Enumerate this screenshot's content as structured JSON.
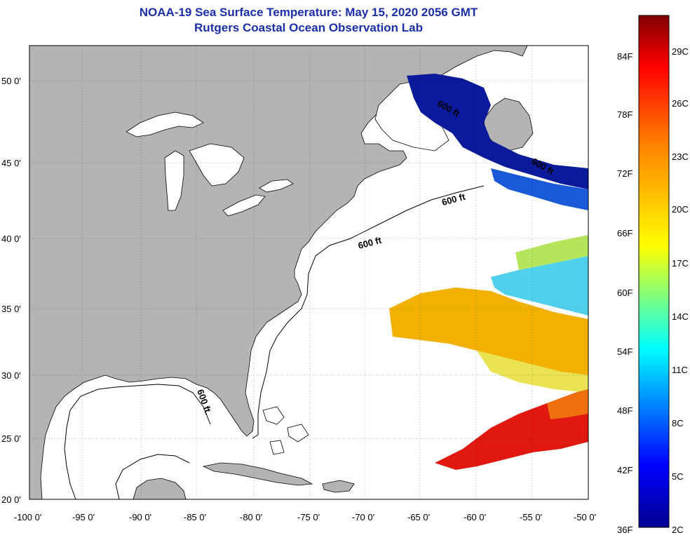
{
  "title": {
    "line1": "NOAA-19 Sea Surface Temperature:  May 15, 2020 2056 GMT",
    "line2": "Rutgers Coastal Ocean Observation Lab"
  },
  "map": {
    "lon_ticks": [
      "-100 0'",
      "-95 0'",
      "-90 0'",
      "-85 0'",
      "-80 0'",
      "-75 0'",
      "-70 0'",
      "-65 0'",
      "-60 0'",
      "-55 0'",
      "-50 0'"
    ],
    "lat_ticks": [
      "50 0'",
      "45 0'",
      "40 0'",
      "35 0'",
      "30 0'",
      "25 0'",
      "20 0'"
    ],
    "contour_labels": [
      "600 ft",
      "600 ft",
      "600 ft",
      "600 ft",
      "600 ft."
    ],
    "colors": {
      "land": "#b4b4b4",
      "water_nodata": "#ffffff",
      "cold": "#0a1a9a",
      "warm": "#f2a000",
      "hot": "#e01810"
    }
  },
  "colorbar": {
    "fahrenheit": [
      "84F",
      "78F",
      "72F",
      "66F",
      "60F",
      "54F",
      "48F",
      "42F",
      "36F"
    ],
    "celsius": [
      "29C",
      "26C",
      "23C",
      "20C",
      "17C",
      "14C",
      "11C",
      "8C",
      "5C",
      "2C"
    ]
  }
}
